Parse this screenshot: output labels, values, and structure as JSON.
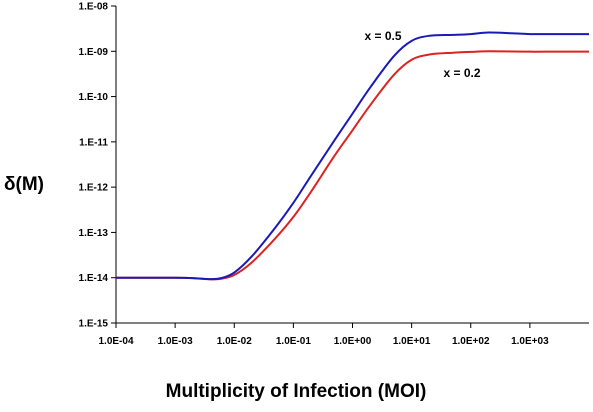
{
  "chart_data": {
    "type": "line",
    "xlabel": "Multiplicity of Infection (MOI)",
    "ylabel": "δ(M)",
    "x_scale": "log",
    "y_scale": "log",
    "xlim": [
      0.0001,
      10000
    ],
    "ylim": [
      1e-15,
      1e-08
    ],
    "grid": false,
    "x_ticks": [
      0.0001,
      0.001,
      0.01,
      0.1,
      1,
      10,
      100,
      1000
    ],
    "x_tick_labels": [
      "1.0E-04",
      "1.0E-03",
      "1.0E-02",
      "1.0E-01",
      "1.0E+00",
      "1.0E+01",
      "1.0E+02",
      "1.0E+03"
    ],
    "y_ticks": [
      1e-15,
      1e-14,
      1e-13,
      1e-12,
      1e-11,
      1e-10,
      1e-09,
      1e-08
    ],
    "y_tick_labels": [
      "1.E-15",
      "1.E-14",
      "1.E-13",
      "1.E-12",
      "1.E-11",
      "1.E-10",
      "1.E-09",
      "1.E-08"
    ],
    "series": [
      {
        "name": "x = 0.5",
        "color": "#1a1ab8",
        "x": [
          0.0001,
          0.0003,
          0.001,
          0.002,
          0.004,
          0.006,
          0.01,
          0.02,
          0.05,
          0.1,
          0.2,
          0.5,
          1,
          2,
          5,
          10,
          20,
          50,
          100,
          200,
          500,
          1000,
          2000,
          5000,
          10000
        ],
        "y": [
          1e-14,
          1e-14,
          1e-14,
          9.8e-15,
          9.3e-15,
          9.8e-15,
          1.3e-14,
          3e-14,
          1.3e-13,
          4.5e-13,
          1.8e-12,
          1.1e-11,
          4.2e-11,
          1.6e-10,
          7.8e-10,
          1.7e-09,
          2.2e-09,
          2.3e-09,
          2.4e-09,
          2.6e-09,
          2.5e-09,
          2.4e-09,
          2.4e-09,
          2.4e-09,
          2.4e-09
        ]
      },
      {
        "name": "x = 0.2",
        "color": "#dd2222",
        "x": [
          0.0001,
          0.0003,
          0.001,
          0.002,
          0.004,
          0.006,
          0.01,
          0.02,
          0.05,
          0.1,
          0.2,
          0.5,
          1,
          2,
          5,
          10,
          20,
          50,
          100,
          200,
          500,
          1000,
          2000,
          5000,
          10000
        ],
        "y": [
          1e-14,
          1e-14,
          1e-14,
          9.8e-15,
          9.2e-15,
          9.5e-15,
          1.15e-14,
          2.2e-14,
          7.5e-14,
          2.2e-13,
          8e-13,
          5e-12,
          1.8e-11,
          6.5e-11,
          3e-10,
          6.5e-10,
          8.5e-10,
          9.3e-10,
          9.7e-10,
          1e-09,
          9.9e-10,
          9.8e-10,
          9.8e-10,
          9.8e-10,
          9.8e-10
        ]
      }
    ],
    "annotations": [
      {
        "text": "x = 0.5",
        "series": 0
      },
      {
        "text": "x = 0.2",
        "series": 1
      }
    ]
  }
}
